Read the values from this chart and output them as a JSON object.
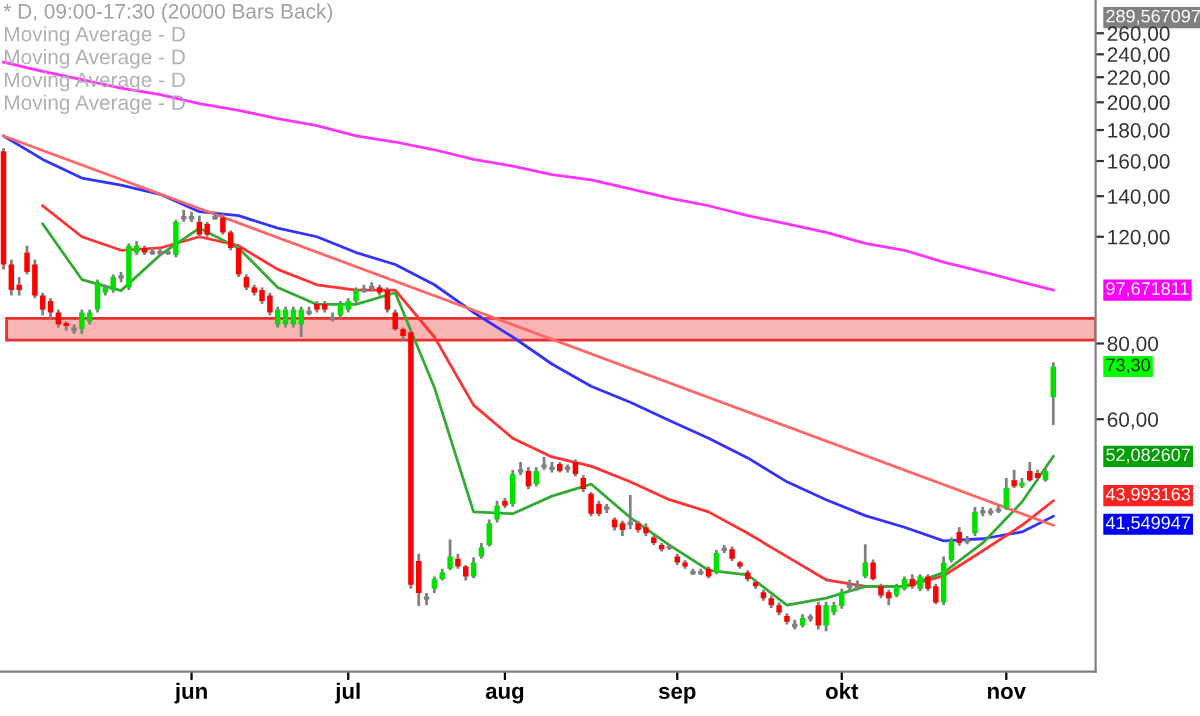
{
  "chart_data": {
    "type": "candlestick",
    "title": "* D, 09:00-17:30 (20000 Bars Back)",
    "annotations": [
      "Moving Average - D",
      "Moving Average - D",
      "Moving Average - D",
      "Moving Average - D",
      "289,567097",
      "97,671811",
      "73,30",
      "52,082607",
      "43,993163",
      "41,549947"
    ],
    "categories": [
      null,
      null,
      null,
      null,
      null,
      null,
      null,
      null,
      null,
      null,
      null,
      null,
      null,
      null,
      null,
      null,
      null,
      null,
      null,
      null,
      null,
      null,
      null,
      null,
      "jun",
      null,
      null,
      null,
      null,
      null,
      null,
      null,
      null,
      null,
      null,
      null,
      null,
      null,
      null,
      null,
      null,
      null,
      null,
      null,
      "jul",
      null,
      null,
      null,
      null,
      null,
      null,
      null,
      null,
      null,
      null,
      null,
      null,
      null,
      null,
      null,
      null,
      null,
      null,
      null,
      "aug",
      null,
      null,
      null,
      null,
      null,
      null,
      null,
      null,
      null,
      null,
      null,
      null,
      null,
      null,
      null,
      null,
      null,
      null,
      null,
      null,
      null,
      "sep",
      null,
      null,
      null,
      null,
      null,
      null,
      null,
      null,
      null,
      null,
      null,
      null,
      null,
      null,
      null,
      null,
      null,
      null,
      null,
      null,
      "okt",
      null,
      null,
      null,
      null,
      null,
      null,
      null,
      null,
      null,
      null,
      null,
      null,
      null,
      null,
      null,
      null,
      null,
      null,
      null,
      null,
      "nov",
      null,
      null,
      null,
      null,
      null,
      null
    ],
    "ohlc": [
      [
        166,
        168,
        106,
        108
      ],
      [
        108,
        110,
        96,
        98
      ],
      [
        100,
        103,
        96,
        98
      ],
      [
        113,
        116,
        104,
        105
      ],
      [
        108,
        110,
        95,
        96
      ],
      [
        96,
        97,
        89,
        91
      ],
      [
        94,
        95,
        88,
        90
      ],
      [
        90,
        91,
        85,
        86
      ],
      [
        86.5,
        87,
        84,
        85.5
      ],
      [
        84.5,
        86,
        83,
        84.5
      ],
      [
        84.5,
        91,
        83,
        90
      ],
      [
        87,
        91,
        86,
        90
      ],
      [
        91,
        102,
        90,
        101
      ],
      [
        97,
        100,
        96,
        99
      ],
      [
        98,
        104,
        97,
        103
      ],
      [
        103,
        105,
        101,
        103
      ],
      [
        99,
        117,
        98,
        116
      ],
      [
        113,
        118,
        112,
        116
      ],
      [
        115,
        116,
        112,
        113
      ],
      [
        113,
        115,
        112,
        113
      ],
      [
        113,
        115,
        112,
        113
      ],
      [
        113,
        114,
        112,
        113
      ],
      [
        112,
        128,
        111,
        127
      ],
      [
        129,
        133,
        127,
        129
      ],
      [
        129,
        132,
        127,
        129
      ],
      [
        127,
        130,
        120,
        121
      ],
      [
        126,
        127,
        120,
        121
      ],
      [
        129,
        132,
        128,
        129
      ],
      [
        129,
        131,
        121,
        122
      ],
      [
        122,
        123,
        114,
        115
      ],
      [
        115,
        116,
        103,
        104
      ],
      [
        103,
        104,
        98,
        99
      ],
      [
        99,
        100,
        96,
        97
      ],
      [
        98,
        99,
        93,
        94
      ],
      [
        96,
        97,
        89,
        90
      ],
      [
        86,
        92,
        85,
        91
      ],
      [
        86,
        92,
        85,
        91
      ],
      [
        86,
        92,
        85,
        91
      ],
      [
        86,
        92,
        82,
        91
      ],
      [
        90,
        92,
        89,
        90
      ],
      [
        93,
        94,
        90,
        91
      ],
      [
        93,
        94,
        90,
        91
      ],
      [
        88,
        90,
        87,
        88
      ],
      [
        89,
        94,
        88,
        93
      ],
      [
        91,
        95,
        90,
        94
      ],
      [
        94,
        99,
        93,
        98
      ],
      [
        98,
        100,
        97,
        98
      ],
      [
        99,
        101,
        98,
        99
      ],
      [
        99,
        100,
        96,
        97
      ],
      [
        98,
        99,
        90,
        91
      ],
      [
        90,
        91,
        84,
        84.5
      ],
      [
        84.5,
        85,
        81,
        82.3
      ],
      [
        83.5,
        84,
        31.5,
        32
      ],
      [
        35,
        36,
        29.5,
        31
      ],
      [
        30.4,
        31,
        29.6,
        30.4
      ],
      [
        31.5,
        33,
        31,
        32.7
      ],
      [
        32.7,
        34,
        32.5,
        33.5
      ],
      [
        34,
        38,
        33.8,
        35.6
      ],
      [
        35.3,
        36,
        34,
        34.3
      ],
      [
        34.3,
        34.5,
        32.5,
        33
      ],
      [
        33,
        35.5,
        32.8,
        34.8
      ],
      [
        35.6,
        37.5,
        35.3,
        36.9
      ],
      [
        37.2,
        41,
        37,
        40.4
      ],
      [
        41,
        44,
        40.5,
        43.2
      ],
      [
        44,
        44.5,
        42.8,
        43.2
      ],
      [
        43.5,
        49.5,
        43,
        48.7
      ],
      [
        49.3,
        51,
        48.5,
        49.3
      ],
      [
        49.3,
        50,
        46,
        46.5
      ],
      [
        46.9,
        50,
        46.5,
        49.3
      ],
      [
        50.2,
        52,
        49.5,
        50.2
      ],
      [
        49.8,
        51,
        49,
        49.8
      ],
      [
        50.6,
        51,
        49,
        49.3
      ],
      [
        49.8,
        50.5,
        49,
        49.8
      ],
      [
        51,
        51.5,
        48.3,
        48.7
      ],
      [
        48,
        48.5,
        45.5,
        46
      ],
      [
        45.2,
        45.5,
        41.5,
        41.9
      ],
      [
        43.5,
        44,
        41.5,
        41.9
      ],
      [
        42.8,
        43.5,
        42,
        42.8
      ],
      [
        41,
        41.3,
        39.3,
        39.8
      ],
      [
        40.4,
        40.8,
        38.5,
        39.4
      ],
      [
        40.4,
        45,
        39.5,
        40.4
      ],
      [
        40.4,
        40.8,
        39,
        39.4
      ],
      [
        39.8,
        40.4,
        38.5,
        38.9
      ],
      [
        38.3,
        38.6,
        37.2,
        37.5
      ],
      [
        37.2,
        37.5,
        36.3,
        36.6
      ],
      [
        36.9,
        37.3,
        36.5,
        36.9
      ],
      [
        35.6,
        36,
        34.5,
        34.8
      ],
      [
        34.8,
        35.1,
        34,
        34.3
      ],
      [
        33.5,
        34,
        33.2,
        33.5
      ],
      [
        33.5,
        34,
        33.2,
        33.5
      ],
      [
        34,
        34.3,
        32.8,
        33
      ],
      [
        33.5,
        36.5,
        33.3,
        36.1
      ],
      [
        36.6,
        37.2,
        36.1,
        36.6
      ],
      [
        36.6,
        37,
        35,
        35.3
      ],
      [
        34.8,
        35,
        34,
        34.3
      ],
      [
        33.5,
        33.8,
        32.4,
        32.7
      ],
      [
        32.3,
        32.6,
        31.5,
        31.8
      ],
      [
        31.1,
        31.4,
        30.1,
        30.4
      ],
      [
        30.4,
        30.7,
        29.3,
        29.6
      ],
      [
        29.6,
        29.9,
        28.5,
        28.8
      ],
      [
        28.4,
        28.7,
        27.5,
        27.8
      ],
      [
        27.4,
        28,
        27,
        27.4
      ],
      [
        27.4,
        28.6,
        27.2,
        28.2
      ],
      [
        28.2,
        28.6,
        27.8,
        28.2
      ],
      [
        29.6,
        30,
        27,
        27.4
      ],
      [
        27.4,
        30,
        26.8,
        29.6
      ],
      [
        28.8,
        30,
        28.5,
        29.6
      ],
      [
        29.5,
        31.5,
        29.2,
        31.1
      ],
      [
        31.8,
        32.6,
        31.3,
        31.8
      ],
      [
        31.8,
        32.5,
        31.3,
        31.8
      ],
      [
        33,
        37.3,
        32.8,
        34.8
      ],
      [
        34.8,
        35.2,
        32.5,
        32.7
      ],
      [
        31.8,
        32.1,
        30.4,
        30.7
      ],
      [
        31.1,
        31.4,
        29.6,
        30.4
      ],
      [
        30.7,
        32.1,
        30.5,
        31.8
      ],
      [
        31.5,
        33,
        31.3,
        32.7
      ],
      [
        32.7,
        33.3,
        31.5,
        31.8
      ],
      [
        31.5,
        33.3,
        31.2,
        33
      ],
      [
        33,
        33.3,
        31.2,
        31.5
      ],
      [
        31.8,
        32.1,
        29.7,
        29.9
      ],
      [
        29.9,
        35.6,
        29.6,
        34.8
      ],
      [
        35.1,
        38.3,
        34.8,
        37.8
      ],
      [
        39.1,
        39.8,
        37.1,
        37.5
      ],
      [
        37.8,
        38.5,
        37.3,
        37.8
      ],
      [
        38.9,
        43,
        38.5,
        42.2
      ],
      [
        42.2,
        43,
        41.5,
        42.2
      ],
      [
        42.2,
        42.8,
        41.6,
        42.2
      ],
      [
        42.5,
        43.2,
        42,
        42.5
      ],
      [
        42.8,
        48,
        42.5,
        46.2
      ],
      [
        47.6,
        49.5,
        46.2,
        46.5
      ],
      [
        46.5,
        48,
        46.2,
        47.2
      ],
      [
        49.3,
        51,
        47.3,
        47.6
      ],
      [
        48.9,
        49.5,
        47.6,
        48
      ],
      [
        47.6,
        49.8,
        47.3,
        49.3
      ],
      [
        65.2,
        74.5,
        58.7,
        73.3
      ]
    ],
    "series": [
      {
        "type": "line",
        "color": "#ff33ff",
        "values": [
          233,
          null,
          null,
          null,
          null,
          225,
          null,
          null,
          null,
          null,
          218,
          null,
          null,
          null,
          null,
          211,
          null,
          null,
          null,
          null,
          206,
          null,
          null,
          null,
          null,
          199,
          null,
          null,
          null,
          null,
          194,
          null,
          null,
          null,
          null,
          188,
          null,
          null,
          null,
          null,
          183,
          null,
          null,
          null,
          null,
          176,
          null,
          null,
          null,
          null,
          172,
          null,
          null,
          null,
          null,
          167,
          null,
          null,
          null,
          null,
          161,
          null,
          null,
          null,
          null,
          157,
          null,
          null,
          null,
          null,
          152,
          null,
          null,
          null,
          null,
          149,
          null,
          null,
          null,
          null,
          144,
          null,
          null,
          null,
          null,
          139,
          null,
          null,
          null,
          null,
          135,
          null,
          null,
          null,
          null,
          130,
          null,
          null,
          null,
          null,
          126,
          null,
          null,
          null,
          null,
          122,
          null,
          null,
          null,
          null,
          117,
          null,
          null,
          null,
          null,
          114,
          null,
          null,
          null,
          null,
          109,
          null,
          null,
          null,
          null,
          105,
          null,
          null,
          null,
          null,
          101,
          null,
          null,
          null,
          98
        ]
      },
      {
        "type": "line",
        "color": "#3333ff",
        "values": [
          176,
          null,
          null,
          null,
          null,
          161,
          null,
          null,
          null,
          null,
          150,
          null,
          null,
          null,
          null,
          146,
          null,
          null,
          null,
          null,
          141,
          null,
          null,
          null,
          null,
          132,
          null,
          null,
          null,
          null,
          130,
          null,
          null,
          null,
          null,
          124,
          null,
          null,
          null,
          null,
          120,
          null,
          null,
          null,
          null,
          113,
          null,
          null,
          null,
          null,
          108,
          null,
          null,
          null,
          null,
          100,
          null,
          null,
          null,
          null,
          90,
          null,
          null,
          null,
          null,
          82,
          null,
          null,
          null,
          null,
          74,
          null,
          null,
          null,
          null,
          68,
          null,
          null,
          null,
          null,
          64,
          null,
          null,
          null,
          null,
          59.7,
          null,
          null,
          null,
          null,
          55.8,
          null,
          null,
          null,
          null,
          51.8,
          null,
          null,
          null,
          null,
          47.3,
          null,
          null,
          null,
          null,
          44.2,
          null,
          null,
          null,
          null,
          41.6,
          null,
          null,
          null,
          null,
          39.8,
          null,
          null,
          null,
          null,
          37.8,
          null,
          null,
          null,
          null,
          38.1,
          null,
          null,
          null,
          null,
          39.1,
          null,
          null,
          null,
          41.5
        ]
      },
      {
        "type": "line",
        "color": "#ff3333",
        "values": [
          null,
          null,
          null,
          null,
          null,
          135,
          null,
          null,
          null,
          null,
          120,
          null,
          null,
          null,
          null,
          114,
          null,
          null,
          null,
          null,
          115,
          null,
          null,
          null,
          null,
          120,
          null,
          null,
          null,
          null,
          116,
          null,
          null,
          null,
          null,
          106,
          null,
          null,
          null,
          null,
          100,
          null,
          null,
          null,
          null,
          98,
          null,
          null,
          null,
          null,
          98,
          null,
          null,
          null,
          null,
          82,
          null,
          null,
          null,
          null,
          63.3,
          null,
          null,
          null,
          null,
          55.8,
          null,
          null,
          null,
          null,
          52,
          null,
          null,
          null,
          null,
          50.2,
          null,
          null,
          null,
          null,
          47.3,
          null,
          null,
          null,
          null,
          44.2,
          null,
          null,
          null,
          null,
          42.2,
          null,
          null,
          null,
          null,
          38.9,
          null,
          null,
          null,
          null,
          35.6,
          null,
          null,
          null,
          null,
          32.6,
          null,
          null,
          null,
          null,
          31.8,
          null,
          null,
          null,
          null,
          31.8,
          null,
          null,
          null,
          null,
          33.1,
          null,
          null,
          null,
          null,
          36.4,
          null,
          null,
          null,
          null,
          40.1,
          null,
          null,
          null,
          44
        ]
      },
      {
        "type": "line",
        "color": "#33aa33",
        "values": [
          null,
          null,
          null,
          null,
          null,
          126,
          null,
          null,
          null,
          null,
          102,
          null,
          null,
          null,
          null,
          97.8,
          null,
          null,
          null,
          null,
          112,
          null,
          null,
          null,
          null,
          124,
          null,
          null,
          null,
          null,
          115,
          null,
          null,
          null,
          null,
          99,
          null,
          null,
          null,
          null,
          92.8,
          null,
          null,
          null,
          null,
          92.8,
          null,
          null,
          null,
          null,
          97,
          null,
          null,
          null,
          null,
          67.7,
          null,
          null,
          null,
          null,
          42.2,
          null,
          null,
          null,
          null,
          41.9,
          null,
          null,
          null,
          null,
          44.8,
          null,
          null,
          null,
          null,
          46.9,
          null,
          null,
          null,
          null,
          41.3,
          null,
          null,
          null,
          null,
          37.2,
          null,
          null,
          null,
          null,
          33.8,
          null,
          null,
          null,
          null,
          33.2,
          null,
          null,
          null,
          null,
          29.6,
          null,
          null,
          null,
          null,
          30.4,
          null,
          null,
          null,
          null,
          31.8,
          null,
          null,
          null,
          null,
          31.8,
          null,
          null,
          null,
          null,
          33.5,
          null,
          null,
          null,
          null,
          37.5,
          null,
          null,
          null,
          null,
          43.8,
          null,
          null,
          null,
          52.1
        ]
      },
      {
        "type": "line",
        "color": "#ff6666",
        "values": [
          176,
          null,
          null,
          null,
          null,
          null,
          null,
          null,
          null,
          null,
          null,
          null,
          null,
          null,
          null,
          null,
          null,
          null,
          null,
          null,
          null,
          null,
          null,
          null,
          null,
          null,
          null,
          null,
          null,
          null,
          null,
          null,
          null,
          null,
          null,
          null,
          null,
          null,
          null,
          null,
          null,
          null,
          null,
          null,
          null,
          null,
          null,
          null,
          null,
          null,
          null,
          null,
          null,
          null,
          null,
          null,
          null,
          null,
          null,
          null,
          null,
          null,
          null,
          null,
          null,
          null,
          null,
          null,
          null,
          null,
          null,
          null,
          null,
          null,
          null,
          null,
          null,
          null,
          null,
          null,
          null,
          null,
          null,
          null,
          null,
          null,
          null,
          null,
          null,
          null,
          null,
          null,
          null,
          null,
          null,
          null,
          null,
          null,
          null,
          null,
          null,
          null,
          null,
          null,
          null,
          null,
          null,
          null,
          null,
          null,
          null,
          null,
          null,
          null,
          null,
          null,
          null,
          null,
          null,
          null,
          null,
          null,
          null,
          null,
          null,
          null,
          null,
          null,
          null,
          null,
          null,
          null,
          null,
          null,
          40.1
        ]
      }
    ],
    "bands": [
      {
        "axis": "y",
        "from": 81,
        "to": 88,
        "color": "#f9b4b4"
      }
    ],
    "log": true,
    "ylim": [
      23,
      295
    ],
    "yticks": [
      {
        "value": 60,
        "label": "60,00"
      },
      {
        "value": 80,
        "label": "80,00"
      },
      {
        "value": 120,
        "label": "120,00"
      },
      {
        "value": 140,
        "label": "140,00"
      },
      {
        "value": 160,
        "label": "160,00"
      },
      {
        "value": 180,
        "label": "180,00"
      },
      {
        "value": 200,
        "label": "200,00"
      },
      {
        "value": 220,
        "label": "220,00"
      },
      {
        "value": 240,
        "label": "240,00"
      },
      {
        "value": 260,
        "label": "260,00"
      }
    ]
  }
}
